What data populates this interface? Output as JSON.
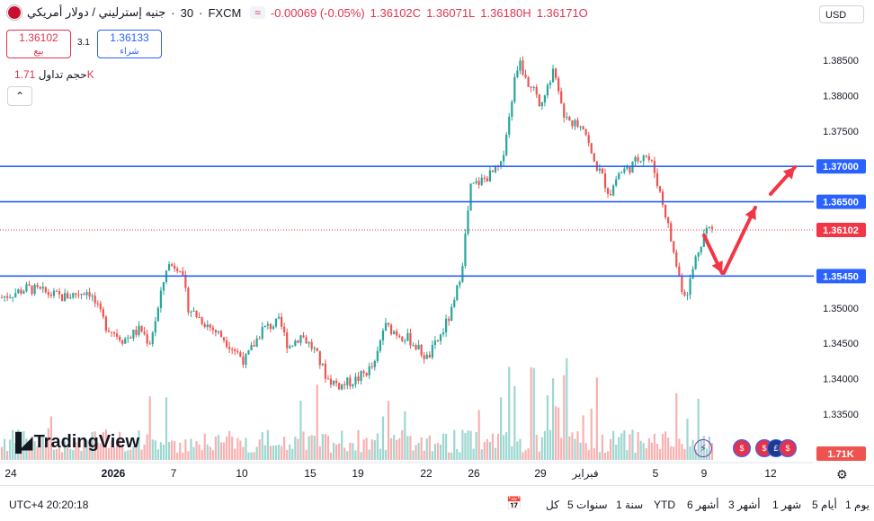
{
  "header": {
    "symbol": "جنيه إسترليني / دولار أمريكي",
    "interval": "30",
    "exchange": "FXCM",
    "change": "-0.00069 (-0.05%)",
    "close": "1.36102C",
    "low": "1.36071L",
    "high": "1.36180H",
    "open": "1.36171O",
    "currency": "USD"
  },
  "trade": {
    "sell_price": "1.36102",
    "sell_label": "بيع",
    "buy_price": "1.36133",
    "buy_label": "شراء",
    "spread": "3.1"
  },
  "volume": {
    "label": "حجم تداول",
    "value": "1.71K"
  },
  "logo": "TradingView",
  "footer": {
    "time": "UTC+4 20:20:18",
    "ranges": [
      "يوم 1",
      "أيام 5",
      "شهر 1",
      "أشهر 3",
      "أشهر 6",
      "YTD",
      "سنة 1",
      "سنوات 5",
      "كل"
    ]
  },
  "colors": {
    "up": "#26a69a",
    "down": "#ef5350",
    "level_line": "#2962ff",
    "arrow": "#f23645",
    "current_price": "#f23645"
  },
  "chart_data": {
    "type": "candlestick",
    "y_ticks": [
      "1.38500",
      "1.38000",
      "1.37500",
      "1.37000",
      "1.36500",
      "1.36102",
      "1.35450",
      "1.35000",
      "1.34500",
      "1.34000",
      "1.33500"
    ],
    "x_ticks": [
      "24",
      "2026",
      "7",
      "10",
      "15",
      "19",
      "22",
      "26",
      "29",
      "فبراير",
      "5",
      "9",
      "12"
    ],
    "levels": [
      1.37,
      1.365,
      1.3545
    ],
    "current_price": 1.36102,
    "ylim": [
      1.331,
      1.3892
    ],
    "volume_label": "1.71K",
    "path": [
      {
        "t": 0,
        "p": 1.3515
      },
      {
        "t": 0.03,
        "p": 1.3528
      },
      {
        "t": 0.07,
        "p": 1.3515
      },
      {
        "t": 0.1,
        "p": 1.3525
      },
      {
        "t": 0.12,
        "p": 1.3475
      },
      {
        "t": 0.14,
        "p": 1.3455
      },
      {
        "t": 0.16,
        "p": 1.347
      },
      {
        "t": 0.17,
        "p": 1.345
      },
      {
        "t": 0.18,
        "p": 1.3498
      },
      {
        "t": 0.19,
        "p": 1.356
      },
      {
        "t": 0.205,
        "p": 1.356
      },
      {
        "t": 0.215,
        "p": 1.35
      },
      {
        "t": 0.235,
        "p": 1.3478
      },
      {
        "t": 0.255,
        "p": 1.3458
      },
      {
        "t": 0.28,
        "p": 1.3425
      },
      {
        "t": 0.3,
        "p": 1.347
      },
      {
        "t": 0.32,
        "p": 1.348
      },
      {
        "t": 0.33,
        "p": 1.3445
      },
      {
        "t": 0.345,
        "p": 1.3462
      },
      {
        "t": 0.36,
        "p": 1.344
      },
      {
        "t": 0.375,
        "p": 1.34
      },
      {
        "t": 0.39,
        "p": 1.339
      },
      {
        "t": 0.41,
        "p": 1.34
      },
      {
        "t": 0.43,
        "p": 1.342
      },
      {
        "t": 0.44,
        "p": 1.3475
      },
      {
        "t": 0.47,
        "p": 1.3455
      },
      {
        "t": 0.49,
        "p": 1.3428
      },
      {
        "t": 0.505,
        "p": 1.346
      },
      {
        "t": 0.52,
        "p": 1.35
      },
      {
        "t": 0.53,
        "p": 1.356
      },
      {
        "t": 0.54,
        "p": 1.367
      },
      {
        "t": 0.55,
        "p": 1.3678
      },
      {
        "t": 0.565,
        "p": 1.369
      },
      {
        "t": 0.575,
        "p": 1.37
      },
      {
        "t": 0.585,
        "p": 1.378
      },
      {
        "t": 0.595,
        "p": 1.385
      },
      {
        "t": 0.605,
        "p": 1.382
      },
      {
        "t": 0.62,
        "p": 1.379
      },
      {
        "t": 0.635,
        "p": 1.3835
      },
      {
        "t": 0.645,
        "p": 1.378
      },
      {
        "t": 0.655,
        "p": 1.376
      },
      {
        "t": 0.67,
        "p": 1.376
      },
      {
        "t": 0.68,
        "p": 1.371
      },
      {
        "t": 0.69,
        "p": 1.369
      },
      {
        "t": 0.7,
        "p": 1.366
      },
      {
        "t": 0.71,
        "p": 1.369
      },
      {
        "t": 0.725,
        "p": 1.37
      },
      {
        "t": 0.74,
        "p": 1.372
      },
      {
        "t": 0.75,
        "p": 1.37
      },
      {
        "t": 0.765,
        "p": 1.363
      },
      {
        "t": 0.775,
        "p": 1.357
      },
      {
        "t": 0.785,
        "p": 1.352
      },
      {
        "t": 0.79,
        "p": 1.3525
      },
      {
        "t": 0.8,
        "p": 1.3575
      },
      {
        "t": 0.81,
        "p": 1.361
      },
      {
        "t": 0.815,
        "p": 1.3612
      },
      {
        "t": 0.818,
        "p": 1.36102
      }
    ]
  }
}
